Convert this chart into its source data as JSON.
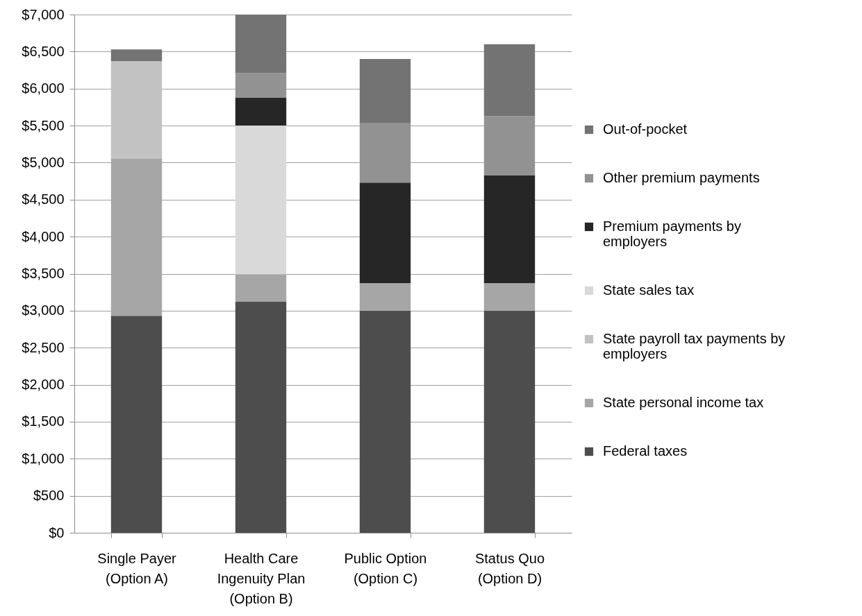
{
  "chart_data": {
    "type": "bar",
    "stacked": true,
    "categories": [
      "Single Payer\n(Option A)",
      "Health Care\nIngenuity Plan\n(Option B)",
      "Public Option\n(Option C)",
      "Status Quo\n(Option D)"
    ],
    "series": [
      {
        "name": "Federal taxes",
        "color": "#4d4d4d",
        "values": [
          2930,
          3120,
          3000,
          3000
        ]
      },
      {
        "name": "State personal income tax",
        "color": "#a6a6a6",
        "values": [
          2120,
          370,
          370,
          370
        ]
      },
      {
        "name": "State payroll tax payments by\nemployers",
        "color": "#c2c2c2",
        "values": [
          1320,
          null,
          null,
          null
        ]
      },
      {
        "name": "State sales tax",
        "color": "#d9d9d9",
        "values": [
          null,
          2010,
          null,
          null
        ]
      },
      {
        "name": "Premium payments by\nemployers",
        "color": "#262626",
        "values": [
          null,
          380,
          1360,
          1460
        ]
      },
      {
        "name": "Other premium payments",
        "color": "#929292",
        "values": [
          null,
          330,
          800,
          800
        ]
      },
      {
        "name": "Out-of-pocket",
        "color": "#737373",
        "values": [
          160,
          790,
          870,
          970
        ]
      }
    ],
    "ylim": [
      0,
      7000
    ],
    "yticks": [
      {
        "value": 0,
        "label": "$0"
      },
      {
        "value": 500,
        "label": "$500"
      },
      {
        "value": 1000,
        "label": "$1,000"
      },
      {
        "value": 1500,
        "label": "$1,500"
      },
      {
        "value": 2000,
        "label": "$2,000"
      },
      {
        "value": 2500,
        "label": "$2,500"
      },
      {
        "value": 3000,
        "label": "$3,000"
      },
      {
        "value": 3500,
        "label": "$3,500"
      },
      {
        "value": 4000,
        "label": "$4,000"
      },
      {
        "value": 4500,
        "label": "$4,500"
      },
      {
        "value": 5000,
        "label": "$5,000"
      },
      {
        "value": 5500,
        "label": "$5,500"
      },
      {
        "value": 6000,
        "label": "$6,000"
      },
      {
        "value": 6500,
        "label": "$6,500"
      },
      {
        "value": 7000,
        "label": "$7,000"
      }
    ],
    "grid": "y",
    "legend": "right"
  }
}
